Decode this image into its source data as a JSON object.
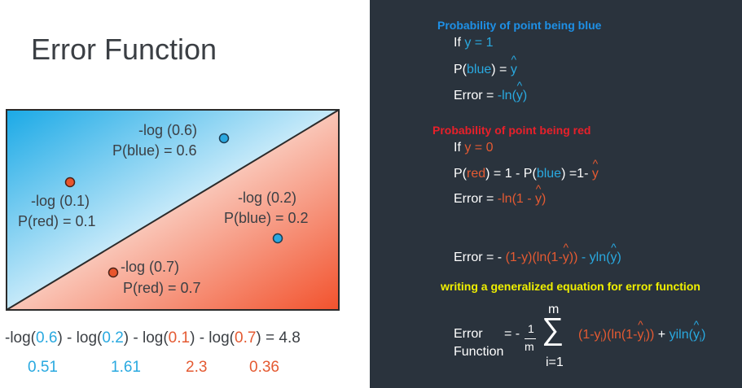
{
  "title": "Error Function",
  "diagram": {
    "blue_top_log": "-log (0.6)",
    "blue_top_p": "P(blue) = 0.6",
    "red_left_log": "-log (0.1)",
    "red_left_p": "P(red) = 0.1",
    "blue_right_log": "-log (0.2)",
    "blue_right_p": "P(blue) = 0.2",
    "red_bottom_log": "-log (0.7)",
    "red_bottom_p": "P(red) = 0.7"
  },
  "sum_equation": {
    "prefix": "-log(",
    "v1": "0.6",
    "mid1": ") - log(",
    "v2": "0.2",
    "mid2": ") - log(",
    "v3": "0.1",
    "mid3": ") - log(",
    "v4": "0.7",
    "suffix": ") = 4.8"
  },
  "values_row": [
    "0.51",
    "1.61",
    "2.3",
    "0.36"
  ],
  "right_panel": {
    "blue_header": "Probability of point being blue",
    "if_label": "If ",
    "y_equals_1": "y = 1",
    "p_open": "P(",
    "blue_word": "blue",
    "p_close_eq": ") = ",
    "y_letter": "y",
    "error_eq": "Error = ",
    "minus_ln_open": "-ln(",
    "close_paren": ")",
    "red_header": "Probability of point being red",
    "y_equals_0": "y = 0",
    "red_word": "red",
    "one_minus_p": ") = 1 - P(",
    "eq_one_minus": ") =1- ",
    "minus_ln_one_minus": "-ln(1 - ",
    "combined_error": "Error = - ",
    "combined_part1": "(1-y)(ln(1-",
    "combined_part2": "))",
    "combined_minus": " - yln(",
    "green_header": "writing a generalized equation for error function",
    "error_word": "Error",
    "function_word": "Function",
    "eq_minus": "= -",
    "frac_num": "1",
    "frac_den": "m",
    "sum_top": "m",
    "sum_bottom": "i=1",
    "sigma": "∑",
    "final_red": "(1-y",
    "sub_i": "i",
    "final_red2": ")(ln(1-",
    "final_red3": "))",
    "final_plus": " + ",
    "final_blue": "yiln(",
    "final_blue_close": ")"
  },
  "colors": {
    "blue": "#29a9e0",
    "red": "#e45a32",
    "panel_bg": "#2a333d",
    "header_blue": "#1e90e6",
    "header_red": "#e8202a",
    "header_yellow": "#f0f000"
  }
}
